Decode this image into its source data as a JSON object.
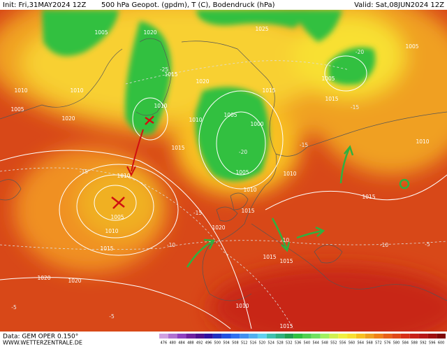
{
  "header": {
    "init": "Init: Fri,31MAY2024 12Z",
    "title": "500 hPa Geopot. (gpdm), T (C), Bodendruck (hPa)",
    "valid": "Valid: Sat,08JUN2024 12Z"
  },
  "map": {
    "isobars": [
      1005,
      1020,
      1025,
      1005,
      1005,
      1010,
      1010,
      1005,
      1020,
      1010,
      1015,
      1020,
      1015,
      1005,
      1000,
      1005,
      1010,
      1010,
      1015,
      1010,
      1005,
      1010,
      1015,
      1020,
      1015,
      1010,
      1015,
      1010,
      1015,
      1015,
      1010,
      1015,
      1020,
      1020,
      1015
    ],
    "isotherms": [
      -20,
      -15,
      -15,
      -10,
      -10,
      -15,
      -20,
      -25,
      -5,
      -5,
      -15,
      -10,
      -5
    ]
  },
  "footer": {
    "source": "Data: GEM OPER 0.150°",
    "site": "WWW.WETTERZENTRALE.DE"
  },
  "scale": {
    "values": [
      476,
      480,
      484,
      488,
      492,
      496,
      500,
      504,
      508,
      512,
      516,
      520,
      524,
      528,
      532,
      536,
      540,
      544,
      548,
      552,
      556,
      560,
      564,
      568,
      572,
      576,
      580,
      584,
      588,
      592,
      596,
      600
    ],
    "colors": [
      "#d0a0e0",
      "#b070d0",
      "#9040c0",
      "#7020a0",
      "#501090",
      "#3010a0",
      "#2030c0",
      "#2050e0",
      "#3070f0",
      "#4090f0",
      "#50b0f0",
      "#60d0f0",
      "#40c0b0",
      "#30b080",
      "#20a050",
      "#30c040",
      "#50d050",
      "#70e060",
      "#a0f060",
      "#d0f050",
      "#f0f040",
      "#f8e030",
      "#f8c020",
      "#f0a020",
      "#f08018",
      "#e86018",
      "#e04818",
      "#d83018",
      "#c82018",
      "#b81818",
      "#a01010",
      "#800808"
    ]
  }
}
